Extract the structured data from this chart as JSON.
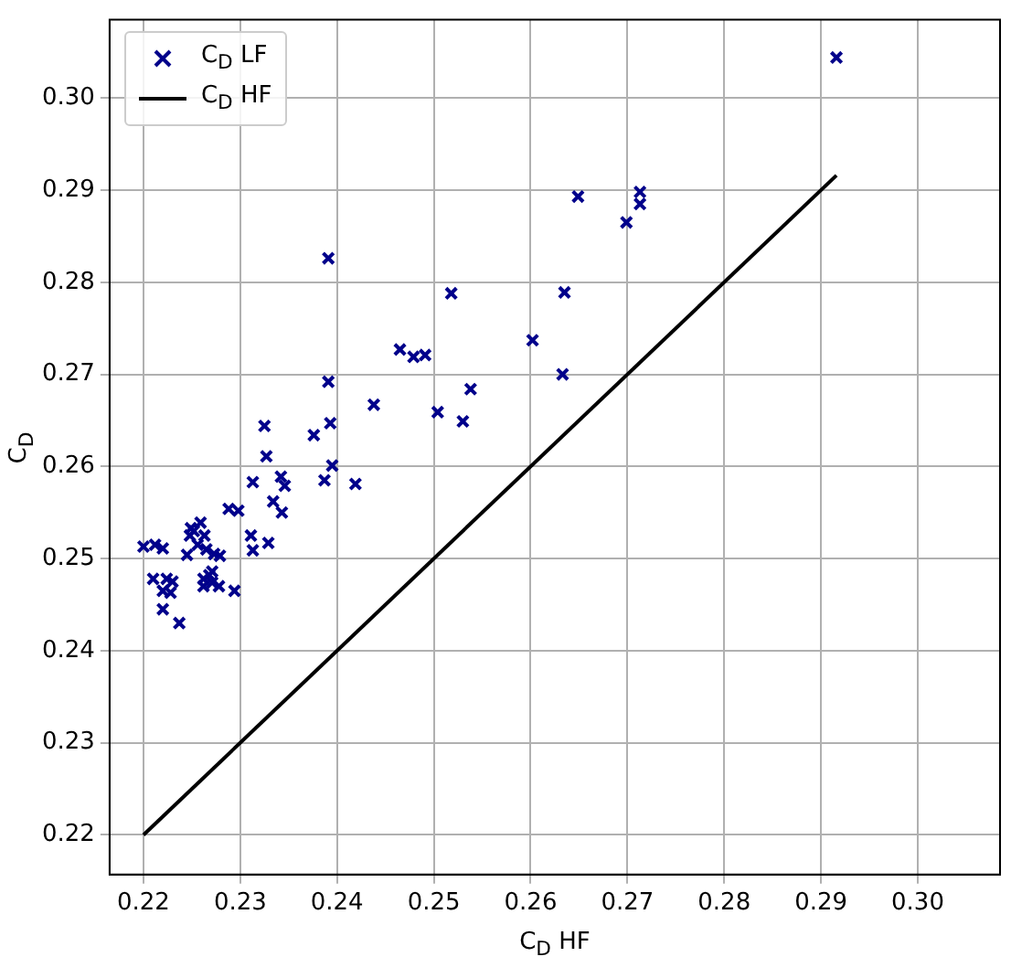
{
  "chart_data": {
    "type": "scatter",
    "xlabel": "C$_{D}$ HF",
    "ylabel": "C$_{D}$",
    "xlim": [
      0.2165,
      0.3085
    ],
    "ylim": [
      0.2157,
      0.3085
    ],
    "xticks": [
      0.22,
      0.23,
      0.24,
      0.25,
      0.26,
      0.27,
      0.28,
      0.29,
      {
        "value": 0.3,
        "label": "0.30"
      }
    ],
    "yticks": [
      0.22,
      0.23,
      0.24,
      0.25,
      0.26,
      0.27,
      0.28,
      0.29,
      {
        "value": 0.3,
        "label": "0.30"
      }
    ],
    "grid": true,
    "legend": "top left",
    "series": [
      {
        "name": "C$_{D}$ LF",
        "marker": "cross",
        "color": "#00008b",
        "x": [
          0.2916,
          0.2649,
          0.2713,
          0.2713,
          0.2699,
          0.2391,
          0.2518,
          0.2635,
          0.2602,
          0.2465,
          0.2479,
          0.2491,
          0.2633,
          0.2538,
          0.2438,
          0.2391,
          0.2504,
          0.253,
          0.2393,
          0.2325,
          0.2376,
          0.2327,
          0.2395,
          0.2387,
          0.2419,
          0.2313,
          0.2342,
          0.2346,
          0.2334,
          0.2343,
          0.2288,
          0.2298,
          0.2311,
          0.2313,
          0.2329,
          0.2249,
          0.2259,
          0.2248,
          0.2256,
          0.22,
          0.2212,
          0.222,
          0.2245,
          0.2265,
          0.2273,
          0.2279,
          0.221,
          0.2224,
          0.222,
          0.2228,
          0.223,
          0.2262,
          0.2268,
          0.2271,
          0.2262,
          0.2278,
          0.2271,
          0.2294,
          0.222,
          0.2237,
          0.2252,
          0.2263
        ],
        "values": [
          0.3044,
          0.2893,
          0.2898,
          0.2885,
          0.2865,
          0.2826,
          0.2788,
          0.2789,
          0.2737,
          0.2727,
          0.2719,
          0.2721,
          0.27,
          0.2684,
          0.2667,
          0.2692,
          0.2659,
          0.2649,
          0.2647,
          0.2644,
          0.2634,
          0.2611,
          0.2601,
          0.2585,
          0.2581,
          0.2583,
          0.2589,
          0.2579,
          0.2562,
          0.255,
          0.2554,
          0.2552,
          0.2525,
          0.2509,
          0.2517,
          0.2533,
          0.2539,
          0.2525,
          0.2515,
          0.2513,
          0.2515,
          0.2511,
          0.2504,
          0.251,
          0.2505,
          0.2503,
          0.2478,
          0.2478,
          0.2465,
          0.2463,
          0.2475,
          0.2478,
          0.2482,
          0.2474,
          0.247,
          0.247,
          0.2486,
          0.2465,
          0.2445,
          0.243,
          0.253,
          0.2525
        ]
      },
      {
        "name": "C$_{D}$ HF",
        "type": "line",
        "marker": "none",
        "line_style": "solid",
        "color": "#000000",
        "x": [
          0.22,
          0.2916
        ],
        "values": [
          0.22,
          0.2916
        ]
      }
    ]
  }
}
